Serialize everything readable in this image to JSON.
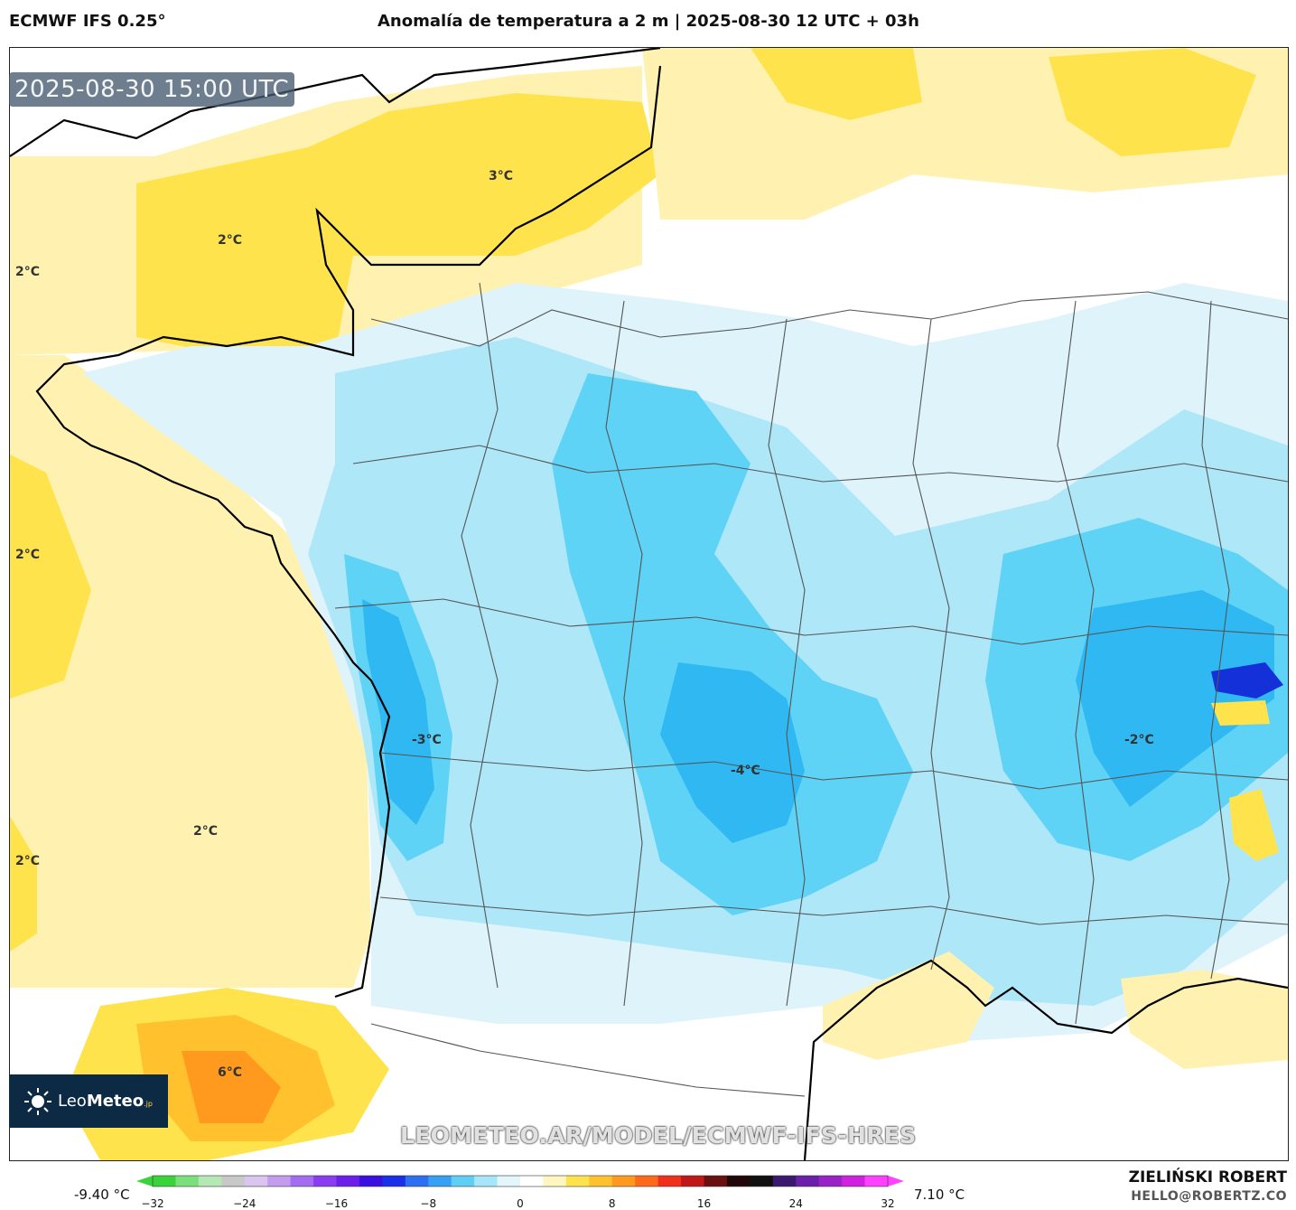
{
  "header": {
    "model": "ECMWF IFS 0.25°",
    "title": "Anomalía de temperatura a 2 m | 2025-08-30 12 UTC + 03h"
  },
  "map": {
    "valid_time": "2025-08-30 15:00 UTC",
    "contour_labels": [
      "3°C",
      "2°C",
      "2°C",
      "2°C",
      "2°C",
      "2°C",
      "-3°C",
      "-4°C",
      "-2°C",
      "6°C"
    ],
    "watermark": "LEOMETEO.AR/MODEL/ECMWF-IFS-HRES",
    "colors": {
      "warm_light": "#fff2b0",
      "warm": "#ffe34d",
      "warm_strong": "#ffc22e",
      "hot": "#ff9a1e",
      "neutral": "#ffffff",
      "cool_light": "#dff3fb",
      "cool": "#aee7f8",
      "cold": "#5fd3f5",
      "colder": "#2fb8f2",
      "cold_extreme": "#1430d8",
      "borders": "#555555",
      "coastline": "#000000"
    }
  },
  "logo": {
    "brand_light": "Leo",
    "brand_bold": "Meteo",
    "suffix": ".jp",
    "icon": "sun-icon"
  },
  "legend": {
    "min_label": "-9.40 °C",
    "max_label": "7.10 °C",
    "ticks": [
      "−32",
      "−24",
      "−16",
      "−8",
      "0",
      "8",
      "16",
      "24",
      "32"
    ],
    "range": [
      -32,
      32
    ],
    "colors": [
      "#39d439",
      "#7be07b",
      "#b5e8b5",
      "#c8c8c8",
      "#d9c5ef",
      "#c39cf0",
      "#a46cf0",
      "#8a3cf0",
      "#6a20e8",
      "#3a10e0",
      "#1a30e8",
      "#2a70f0",
      "#35a0f4",
      "#5fcff6",
      "#a6e6fa",
      "#e3f6fc",
      "#ffffff",
      "#fff6c0",
      "#ffe34d",
      "#ffc22e",
      "#ff9a1e",
      "#ff6a1a",
      "#f0301a",
      "#c01818",
      "#6a1010",
      "#200808",
      "#101010",
      "#3a1a70",
      "#6a20a8",
      "#9a20c8",
      "#d020e0",
      "#ff40ff"
    ]
  },
  "credits": {
    "name": "ZIELIŃSKI ROBERT",
    "email": "HELLO@ROBERTZ.CO"
  }
}
